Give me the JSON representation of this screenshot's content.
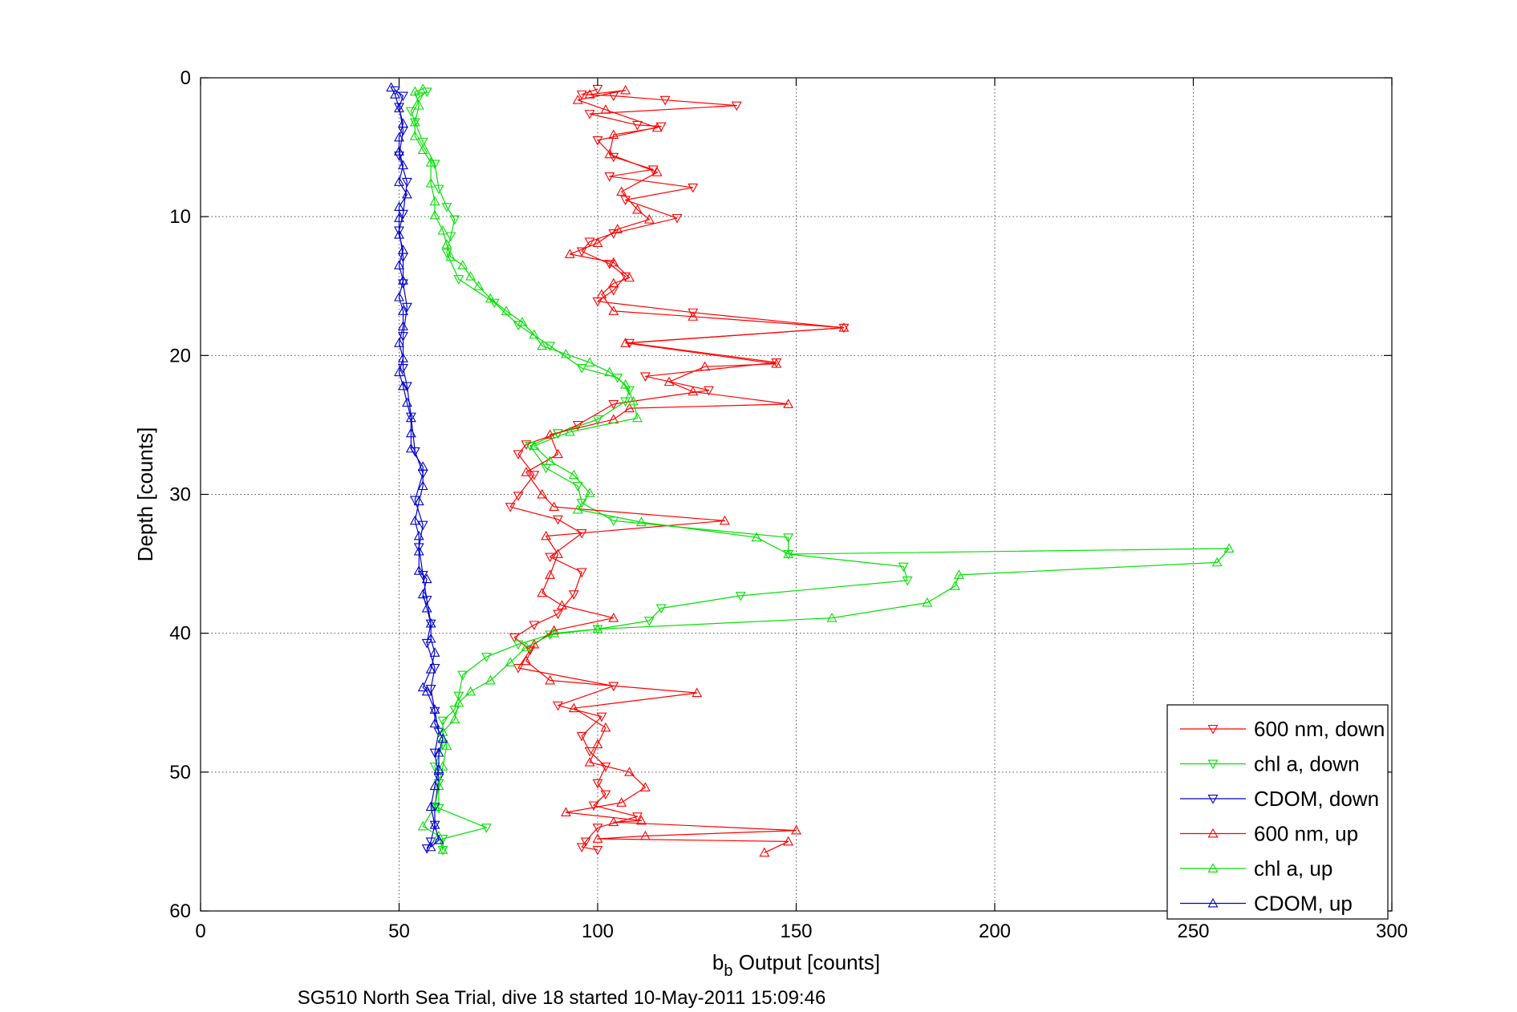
{
  "chart_data": {
    "type": "line",
    "title": "",
    "xlabel_main": "b",
    "xlabel_sub": "b",
    "xlabel_rest": " Output [counts]",
    "ylabel": "Depth [counts]",
    "caption": "SG510 North Sea Trial, dive 18 started 10-May-2011 15:09:46",
    "xlim": [
      0,
      300
    ],
    "ylim": [
      0,
      60
    ],
    "y_reversed": true,
    "grid": true,
    "legend_position": "bottom-right",
    "x_ticks": [
      0,
      50,
      100,
      150,
      200,
      250,
      300
    ],
    "y_ticks": [
      0,
      10,
      20,
      30,
      40,
      50,
      60
    ],
    "x_tick_labels": [
      "0",
      "50",
      "100",
      "150",
      "200",
      "250",
      "300"
    ],
    "y_tick_labels": [
      "0",
      "10",
      "20",
      "30",
      "40",
      "50",
      "60"
    ],
    "series": [
      {
        "name": "600 nm, down",
        "color": "#ff0000",
        "marker": "triangle-down",
        "points": [
          [
            100,
            0.8
          ],
          [
            96,
            1.2
          ],
          [
            104,
            1.3
          ],
          [
            117,
            1.6
          ],
          [
            135,
            2.0
          ],
          [
            98,
            2.6
          ],
          [
            110,
            3.4
          ],
          [
            116,
            3.5
          ],
          [
            100,
            4.5
          ],
          [
            104,
            5.7
          ],
          [
            114,
            6.6
          ],
          [
            103,
            7.1
          ],
          [
            124,
            7.9
          ],
          [
            107,
            8.8
          ],
          [
            120,
            10.1
          ],
          [
            104,
            11.2
          ],
          [
            98,
            11.8
          ],
          [
            96,
            12.5
          ],
          [
            103,
            13.4
          ],
          [
            107,
            14.3
          ],
          [
            104,
            15.3
          ],
          [
            100,
            16.1
          ],
          [
            124,
            16.9
          ],
          [
            162,
            18.0
          ],
          [
            108,
            19.1
          ],
          [
            145,
            20.5
          ],
          [
            112,
            21.5
          ],
          [
            128,
            22.5
          ],
          [
            104,
            23.5
          ],
          [
            95,
            25.0
          ],
          [
            90,
            25.6
          ],
          [
            82,
            26.4
          ],
          [
            80,
            27.1
          ],
          [
            84,
            28.6
          ],
          [
            80,
            30.1
          ],
          [
            78,
            30.9
          ],
          [
            90,
            31.8
          ],
          [
            96,
            32.8
          ],
          [
            88,
            34.5
          ],
          [
            96,
            35.6
          ],
          [
            94,
            37.2
          ],
          [
            90,
            38.6
          ],
          [
            84,
            39.4
          ],
          [
            79,
            40.3
          ],
          [
            83,
            41.2
          ],
          [
            80,
            42.5
          ],
          [
            104,
            43.8
          ],
          [
            90,
            45.2
          ],
          [
            101,
            46.0
          ],
          [
            96,
            47.4
          ],
          [
            98,
            48.5
          ],
          [
            102,
            49.6
          ],
          [
            100,
            50.8
          ],
          [
            102,
            51.6
          ],
          [
            99,
            52.4
          ],
          [
            110,
            53.2
          ],
          [
            100,
            54.0
          ],
          [
            97,
            55.0
          ],
          [
            96,
            55.4
          ],
          [
            100,
            55.6
          ]
        ]
      },
      {
        "name": "chl a, down",
        "color": "#00e000",
        "marker": "triangle-down",
        "points": [
          [
            57,
            1.0
          ],
          [
            55,
            1.4
          ],
          [
            53,
            2.4
          ],
          [
            54,
            3.2
          ],
          [
            56,
            4.6
          ],
          [
            59,
            6.2
          ],
          [
            60,
            8.0
          ],
          [
            62,
            9.3
          ],
          [
            64,
            10.2
          ],
          [
            63,
            11.4
          ],
          [
            62,
            12.6
          ],
          [
            65,
            14.5
          ],
          [
            74,
            16.2
          ],
          [
            80,
            17.8
          ],
          [
            88,
            19.3
          ],
          [
            96,
            20.9
          ],
          [
            105,
            21.6
          ],
          [
            108,
            22.5
          ],
          [
            107,
            23.3
          ],
          [
            100,
            24.6
          ],
          [
            90,
            25.6
          ],
          [
            83,
            26.5
          ],
          [
            87,
            28.1
          ],
          [
            95,
            29.4
          ],
          [
            96,
            30.6
          ],
          [
            104,
            31.9
          ],
          [
            148,
            33.1
          ],
          [
            148,
            34.3
          ],
          [
            177,
            35.2
          ],
          [
            178,
            36.2
          ],
          [
            136,
            37.3
          ],
          [
            116,
            38.2
          ],
          [
            113,
            39.1
          ],
          [
            100,
            39.7
          ],
          [
            88,
            40.1
          ],
          [
            80,
            40.8
          ],
          [
            72,
            41.7
          ],
          [
            66,
            43.0
          ],
          [
            65,
            44.5
          ],
          [
            64,
            45.5
          ],
          [
            61,
            46.3
          ],
          [
            61,
            48.0
          ],
          [
            59,
            49.6
          ],
          [
            60,
            50.8
          ],
          [
            60,
            52.6
          ],
          [
            72,
            54.0
          ],
          [
            61,
            54.8
          ],
          [
            61,
            55.6
          ]
        ]
      },
      {
        "name": "CDOM, down",
        "color": "#0000cc",
        "marker": "triangle-down",
        "points": [
          [
            49,
            0.9
          ],
          [
            51,
            1.3
          ],
          [
            50,
            2.1
          ],
          [
            51,
            3.8
          ],
          [
            50,
            5.6
          ],
          [
            52,
            7.5
          ],
          [
            51,
            9.8
          ],
          [
            50,
            11.0
          ],
          [
            51,
            12.9
          ],
          [
            51,
            14.8
          ],
          [
            52,
            16.5
          ],
          [
            51,
            18.6
          ],
          [
            51,
            20.9
          ],
          [
            52,
            22.2
          ],
          [
            53,
            24.4
          ],
          [
            54,
            26.9
          ],
          [
            56,
            28.5
          ],
          [
            54,
            30.4
          ],
          [
            56,
            32.2
          ],
          [
            55,
            33.8
          ],
          [
            56,
            35.8
          ],
          [
            57,
            37.6
          ],
          [
            58,
            39.3
          ],
          [
            57,
            40.7
          ],
          [
            59,
            42.5
          ],
          [
            58,
            44.0
          ],
          [
            59,
            45.6
          ],
          [
            60,
            47.1
          ],
          [
            59,
            48.6
          ],
          [
            60,
            50.4
          ],
          [
            59,
            52.5
          ],
          [
            59,
            53.8
          ],
          [
            58,
            55.0
          ],
          [
            57,
            55.5
          ]
        ]
      },
      {
        "name": "600 nm, up",
        "color": "#ff0000",
        "marker": "triangle-up",
        "points": [
          [
            142,
            55.8
          ],
          [
            148,
            55.0
          ],
          [
            100,
            54.8
          ],
          [
            112,
            54.6
          ],
          [
            150,
            54.2
          ],
          [
            104,
            53.6
          ],
          [
            111,
            53.5
          ],
          [
            92,
            52.9
          ],
          [
            106,
            52.2
          ],
          [
            112,
            51.1
          ],
          [
            108,
            50.0
          ],
          [
            98,
            49.3
          ],
          [
            100,
            48.0
          ],
          [
            102,
            46.8
          ],
          [
            94,
            45.4
          ],
          [
            125,
            44.3
          ],
          [
            88,
            43.4
          ],
          [
            82,
            42.0
          ],
          [
            84,
            40.8
          ],
          [
            89,
            39.8
          ],
          [
            104,
            38.9
          ],
          [
            91,
            38.0
          ],
          [
            86,
            37.1
          ],
          [
            88,
            35.8
          ],
          [
            90,
            34.3
          ],
          [
            87,
            33.0
          ],
          [
            132,
            31.9
          ],
          [
            89,
            30.9
          ],
          [
            86,
            30.0
          ],
          [
            82,
            28.4
          ],
          [
            90,
            27.1
          ],
          [
            88,
            25.7
          ],
          [
            104,
            24.6
          ],
          [
            108,
            23.8
          ],
          [
            148,
            23.5
          ],
          [
            124,
            22.6
          ],
          [
            118,
            21.9
          ],
          [
            127,
            20.8
          ],
          [
            145,
            20.6
          ],
          [
            107,
            19.1
          ],
          [
            162,
            18.0
          ],
          [
            124,
            17.2
          ],
          [
            104,
            16.8
          ],
          [
            101,
            15.6
          ],
          [
            104,
            14.8
          ],
          [
            108,
            14.4
          ],
          [
            104,
            13.3
          ],
          [
            93,
            12.7
          ],
          [
            100,
            11.9
          ],
          [
            105,
            10.9
          ],
          [
            113,
            10.2
          ],
          [
            110,
            9.5
          ],
          [
            106,
            8.2
          ],
          [
            115,
            6.8
          ],
          [
            103,
            5.5
          ],
          [
            104,
            4.1
          ],
          [
            115,
            3.6
          ],
          [
            102,
            2.3
          ],
          [
            95,
            1.6
          ],
          [
            107,
            0.9
          ],
          [
            98,
            1.2
          ]
        ]
      },
      {
        "name": "chl a, up",
        "color": "#00e000",
        "marker": "triangle-up",
        "points": [
          [
            61,
            55.6
          ],
          [
            60,
            54.6
          ],
          [
            56,
            53.9
          ],
          [
            59,
            52.5
          ],
          [
            60,
            51.0
          ],
          [
            61,
            49.6
          ],
          [
            62,
            48.1
          ],
          [
            61,
            47.1
          ],
          [
            64,
            46.2
          ],
          [
            65,
            45.0
          ],
          [
            68,
            44.2
          ],
          [
            73,
            43.4
          ],
          [
            78,
            42.1
          ],
          [
            82,
            41.0
          ],
          [
            89,
            40.0
          ],
          [
            100,
            39.7
          ],
          [
            159,
            38.9
          ],
          [
            183,
            37.8
          ],
          [
            190,
            36.6
          ],
          [
            191,
            35.8
          ],
          [
            256,
            34.9
          ],
          [
            259,
            33.9
          ],
          [
            148,
            34.3
          ],
          [
            140,
            33.1
          ],
          [
            111,
            32.0
          ],
          [
            95,
            31.1
          ],
          [
            98,
            29.9
          ],
          [
            94,
            28.6
          ],
          [
            88,
            27.6
          ],
          [
            84,
            26.5
          ],
          [
            93,
            25.5
          ],
          [
            110,
            24.5
          ],
          [
            109,
            23.3
          ],
          [
            107,
            22.1
          ],
          [
            103,
            21.2
          ],
          [
            98,
            20.5
          ],
          [
            92,
            19.9
          ],
          [
            86,
            19.3
          ],
          [
            84,
            18.5
          ],
          [
            81,
            17.6
          ],
          [
            77,
            16.8
          ],
          [
            73,
            15.9
          ],
          [
            70,
            15.0
          ],
          [
            68,
            14.3
          ],
          [
            66,
            13.5
          ],
          [
            63,
            12.9
          ],
          [
            62,
            12.0
          ],
          [
            61,
            11.0
          ],
          [
            59,
            9.9
          ],
          [
            59,
            8.9
          ],
          [
            58,
            7.6
          ],
          [
            58,
            6.1
          ],
          [
            56,
            5.2
          ],
          [
            54,
            4.2
          ],
          [
            54,
            3.2
          ],
          [
            55,
            2.0
          ],
          [
            54,
            1.0
          ],
          [
            56,
            0.8
          ]
        ]
      },
      {
        "name": "CDOM, up",
        "color": "#0000cc",
        "marker": "triangle-up",
        "points": [
          [
            58,
            55.4
          ],
          [
            60,
            54.9
          ],
          [
            59,
            53.8
          ],
          [
            58,
            52.5
          ],
          [
            59,
            51.0
          ],
          [
            60,
            49.8
          ],
          [
            60,
            48.6
          ],
          [
            61,
            47.6
          ],
          [
            59,
            46.5
          ],
          [
            59,
            45.5
          ],
          [
            57,
            44.2
          ],
          [
            56,
            43.9
          ],
          [
            58,
            42.6
          ],
          [
            59,
            41.4
          ],
          [
            58,
            40.4
          ],
          [
            58,
            39.3
          ],
          [
            57,
            38.2
          ],
          [
            56,
            37.2
          ],
          [
            57,
            36.1
          ],
          [
            55,
            35.5
          ],
          [
            55,
            34.1
          ],
          [
            55,
            33.0
          ],
          [
            54,
            31.9
          ],
          [
            55,
            30.5
          ],
          [
            56,
            29.4
          ],
          [
            56,
            28.0
          ],
          [
            53,
            26.7
          ],
          [
            53,
            25.6
          ],
          [
            53,
            24.5
          ],
          [
            52,
            23.4
          ],
          [
            51,
            22.2
          ],
          [
            50,
            21.2
          ],
          [
            51,
            20.2
          ],
          [
            50,
            19.1
          ],
          [
            51,
            17.9
          ],
          [
            51,
            16.8
          ],
          [
            50,
            15.8
          ],
          [
            51,
            14.6
          ],
          [
            50,
            13.5
          ],
          [
            51,
            12.4
          ],
          [
            50,
            11.3
          ],
          [
            50,
            10.1
          ],
          [
            50,
            9.3
          ],
          [
            52,
            8.4
          ],
          [
            50,
            7.5
          ],
          [
            51,
            6.3
          ],
          [
            50,
            5.3
          ],
          [
            50,
            4.3
          ],
          [
            51,
            3.3
          ],
          [
            50,
            2.2
          ],
          [
            49,
            1.2
          ],
          [
            48,
            0.7
          ]
        ]
      }
    ]
  }
}
